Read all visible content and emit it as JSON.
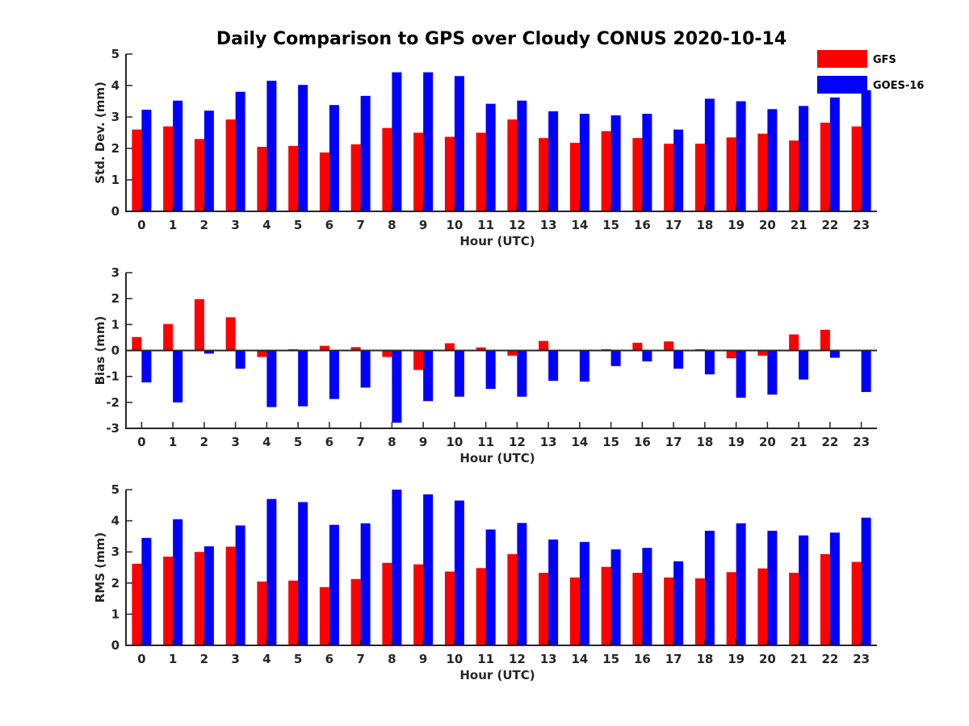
{
  "chart_data": {
    "type": "bar",
    "title": "Daily Comparison to GPS over Cloudy CONUS 2020-10-14",
    "categories": [
      "0",
      "1",
      "2",
      "3",
      "4",
      "5",
      "6",
      "7",
      "8",
      "9",
      "10",
      "11",
      "12",
      "13",
      "14",
      "15",
      "16",
      "17",
      "18",
      "19",
      "20",
      "21",
      "22",
      "23"
    ],
    "legend": {
      "placement": "top-right",
      "entries": [
        {
          "name": "GFS",
          "color": "#ff0000"
        },
        {
          "name": "GOES-16",
          "color": "#0000ff"
        }
      ]
    },
    "panels": [
      {
        "id": "std",
        "ylabel": "Std. Dev. (mm)",
        "xlabel": "Hour (UTC)",
        "ylim": [
          0,
          5
        ],
        "yticks": [
          0,
          1,
          2,
          3,
          4,
          5
        ],
        "series": [
          {
            "name": "GFS",
            "color": "#ff0000",
            "values": [
              2.6,
              2.7,
              2.3,
              2.92,
              2.05,
              2.08,
              1.87,
              2.13,
              2.65,
              2.5,
              2.37,
              2.5,
              2.92,
              2.33,
              2.18,
              2.55,
              2.33,
              2.15,
              2.15,
              2.35,
              2.47,
              2.25,
              2.82,
              2.7
            ]
          },
          {
            "name": "GOES-16",
            "color": "#0000ff",
            "values": [
              3.23,
              3.52,
              3.2,
              3.8,
              4.15,
              4.02,
              3.38,
              3.67,
              4.42,
              4.42,
              4.3,
              3.42,
              3.52,
              3.18,
              3.1,
              3.05,
              3.1,
              2.6,
              3.58,
              3.5,
              3.25,
              3.35,
              3.62,
              3.85
            ]
          }
        ]
      },
      {
        "id": "bias",
        "ylabel": "Bias (mm)",
        "xlabel": "Hour (UTC)",
        "ylim": [
          -3,
          3
        ],
        "yticks": [
          -3,
          -2,
          -1,
          0,
          1,
          2,
          3
        ],
        "series": [
          {
            "name": "GFS",
            "color": "#ff0000",
            "values": [
              0.52,
              1.02,
              1.98,
              1.28,
              -0.25,
              0.05,
              0.18,
              0.13,
              -0.25,
              -0.75,
              0.28,
              0.12,
              -0.2,
              0.37,
              0.0,
              0.05,
              0.3,
              0.35,
              0.05,
              -0.3,
              -0.2,
              0.62,
              0.8,
              -0.02
            ]
          },
          {
            "name": "GOES-16",
            "color": "#0000ff",
            "values": [
              -1.23,
              -2.0,
              -0.12,
              -0.7,
              -2.18,
              -2.15,
              -1.87,
              -1.43,
              -2.78,
              -1.95,
              -1.78,
              -1.48,
              -1.78,
              -1.17,
              -1.2,
              -0.6,
              -0.42,
              -0.7,
              -0.92,
              -1.82,
              -1.7,
              -1.12,
              -0.28,
              -1.6
            ]
          }
        ]
      },
      {
        "id": "rms",
        "ylabel": "RMS (mm)",
        "xlabel": "Hour (UTC)",
        "ylim": [
          0,
          5
        ],
        "yticks": [
          0,
          1,
          2,
          3,
          4,
          5
        ],
        "series": [
          {
            "name": "GFS",
            "color": "#ff0000",
            "values": [
              2.62,
              2.85,
              3.0,
              3.17,
              2.05,
              2.08,
              1.87,
              2.13,
              2.65,
              2.6,
              2.37,
              2.48,
              2.93,
              2.33,
              2.18,
              2.52,
              2.33,
              2.18,
              2.15,
              2.35,
              2.47,
              2.33,
              2.93,
              2.68
            ]
          },
          {
            "name": "GOES-16",
            "color": "#0000ff",
            "values": [
              3.45,
              4.05,
              3.18,
              3.85,
              4.7,
              4.6,
              3.87,
              3.92,
              5.0,
              4.85,
              4.65,
              3.72,
              3.93,
              3.4,
              3.32,
              3.08,
              3.13,
              2.7,
              3.68,
              3.92,
              3.68,
              3.53,
              3.62,
              4.1
            ]
          }
        ]
      }
    ]
  }
}
